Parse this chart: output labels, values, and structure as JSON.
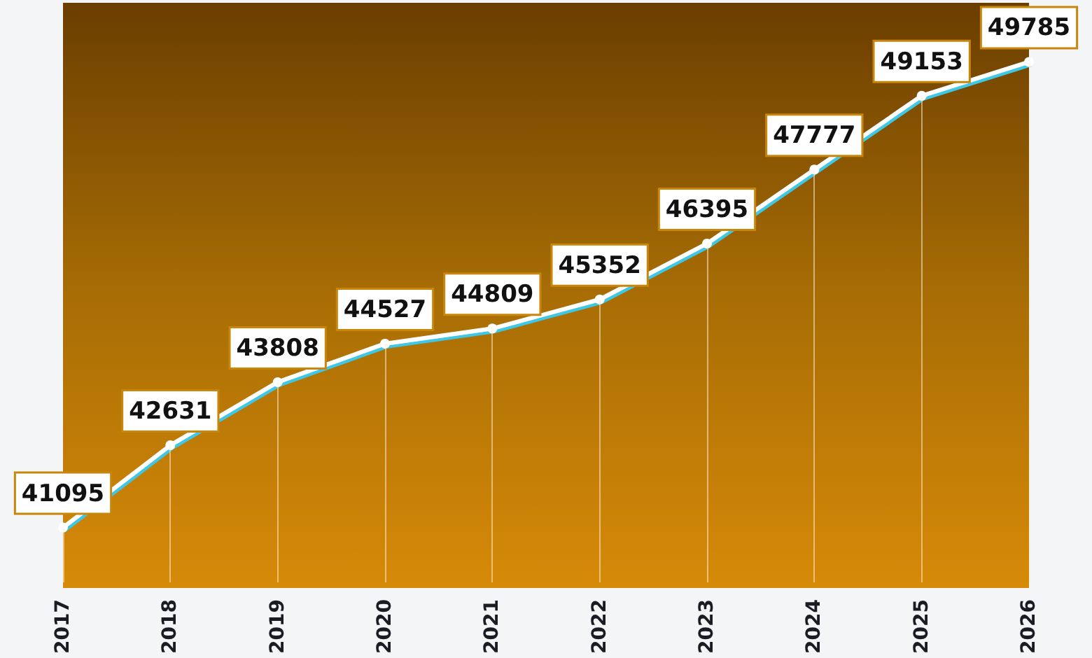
{
  "chart_data": {
    "type": "line",
    "categories": [
      "2017",
      "2018",
      "2019",
      "2020",
      "2021",
      "2022",
      "2023",
      "2024",
      "2025",
      "2026"
    ],
    "series": [
      {
        "color": "#ffffff",
        "values": [
          41095,
          42631,
          43808,
          44527,
          44809,
          45352,
          46395,
          47777,
          49153,
          49785
        ]
      }
    ],
    "marker": "circle",
    "line_style": "solid",
    "data_labels": true,
    "grid": "x"
  }
}
